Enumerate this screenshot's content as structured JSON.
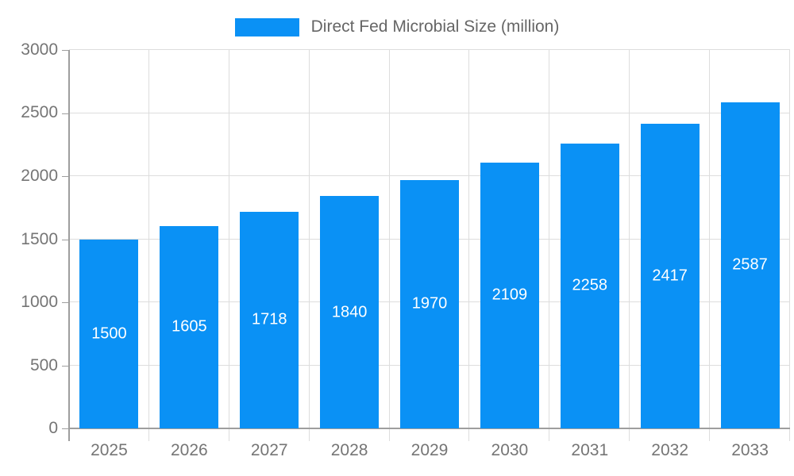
{
  "legend": {
    "label": "Direct Fed Microbial Size (million)"
  },
  "colors": {
    "bar": "#0a91f5",
    "grid": "#dddddd",
    "axis": "#9e9e9e",
    "axis_label_text": "#757575",
    "legend_text": "#666666",
    "bar_value_text": "#ffffff",
    "background": "#ffffff"
  },
  "chart_data": {
    "type": "bar",
    "title": "Direct Fed Microbial Size (million)",
    "series_name": "Direct Fed Microbial Size (million)",
    "categories": [
      "2025",
      "2026",
      "2027",
      "2028",
      "2029",
      "2030",
      "2031",
      "2032",
      "2033"
    ],
    "values": [
      1500,
      1605,
      1718,
      1840,
      1970,
      2109,
      2258,
      2417,
      2587
    ],
    "value_labels": [
      "1500",
      "1605",
      "1718",
      "1840",
      "1970",
      "2109",
      "2258",
      "2417",
      "2587"
    ],
    "xlabel": "",
    "ylabel": "",
    "ylim": [
      0,
      3000
    ],
    "yticks": [
      0,
      500,
      1000,
      1500,
      2000,
      2500,
      3000
    ],
    "ytick_labels": [
      "0",
      "500",
      "1000",
      "1500",
      "2000",
      "2500",
      "3000"
    ],
    "grid": true,
    "legend_position": "top-center",
    "bar_value_label_position": "inside-center"
  }
}
